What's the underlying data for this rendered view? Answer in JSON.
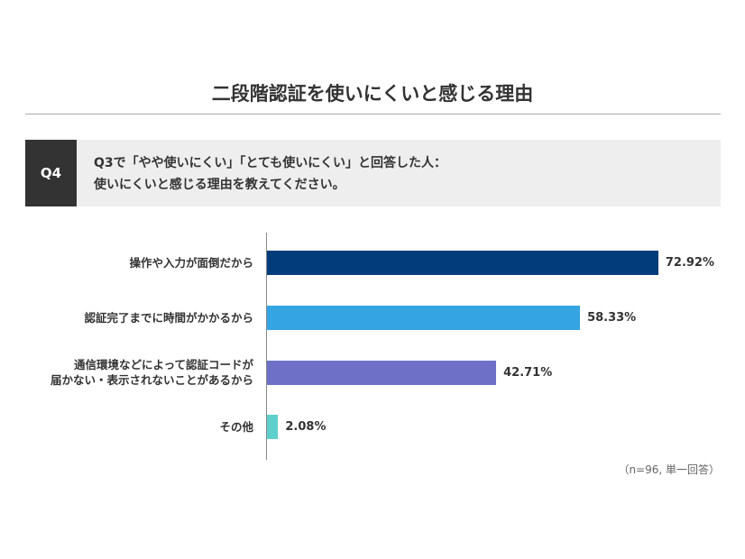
{
  "header": {
    "title": "二段階認証を使いにくいと感じる理由",
    "question_tag": "Q4",
    "question_line1": "Q3で「やや使いにくい」「とても使いにくい」と回答した人：",
    "question_line2": "使いにくいと感じる理由を教えてください。"
  },
  "chart_data": {
    "type": "bar",
    "orientation": "horizontal",
    "categories": [
      "操作や入力が面倒だから",
      "認証完了までに時間がかかるから",
      "通信環境などによって認証コードが\n届かない・表示されないことがあるから",
      "その他"
    ],
    "values": [
      72.92,
      58.33,
      42.71,
      2.08
    ],
    "value_labels": [
      "72.92%",
      "58.33%",
      "42.71%",
      "2.08%"
    ],
    "colors": [
      "#033c7a",
      "#35a4e3",
      "#6e70c8",
      "#5ecfcb"
    ],
    "unit": "%",
    "xlim": [
      0,
      100
    ],
    "grid": false,
    "note": "（n=96, 単一回答）"
  }
}
